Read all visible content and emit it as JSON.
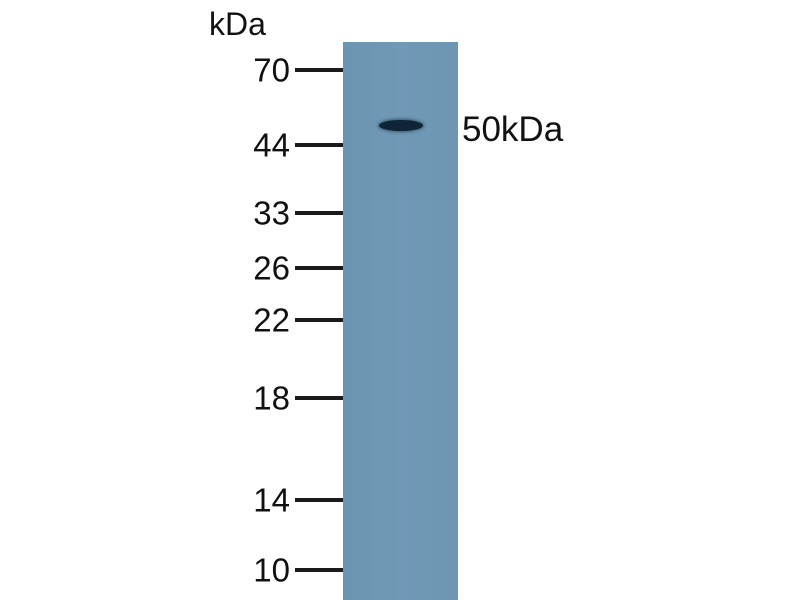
{
  "unit_label": "kDa",
  "markers": [
    "70",
    "44",
    "33",
    "26",
    "22",
    "18",
    "14",
    "10"
  ],
  "band": {
    "label": "50kDa",
    "color": "#0f2436"
  },
  "lane_color": "#6f98b4"
}
